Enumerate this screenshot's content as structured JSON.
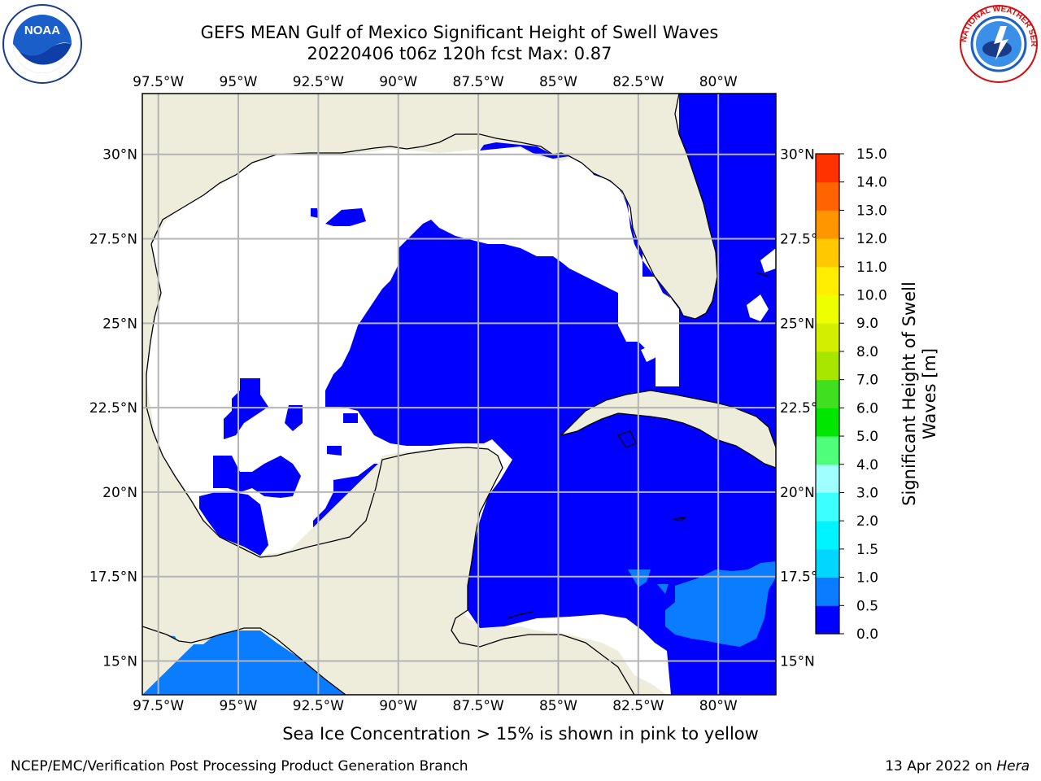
{
  "title": {
    "line1": "GEFS MEAN Gulf of Mexico Significant Height of Swell Waves",
    "line2": "20220406 t06z 120h fcst   Max: 0.87"
  },
  "map": {
    "lon_labels": [
      "97.5°W",
      "95°W",
      "92.5°W",
      "90°W",
      "87.5°W",
      "85°W",
      "82.5°W",
      "80°W"
    ],
    "lon_values": [
      -97.5,
      -95,
      -92.5,
      -90,
      -87.5,
      -85,
      -82.5,
      -80
    ],
    "lat_labels": [
      "30°N",
      "27.5°N",
      "25°N",
      "22.5°N",
      "20°N",
      "17.5°N",
      "15°N"
    ],
    "lat_values": [
      30,
      27.5,
      25,
      22.5,
      20,
      17.5,
      15
    ],
    "lon_range": [
      -98,
      -78.2
    ],
    "lat_range": [
      14,
      31.8
    ],
    "colors": {
      "land": "#eeeddc",
      "no_data": "#ffffff",
      "swell_low": "#0000ff",
      "swell_mid": "#0a7cff",
      "grid": "#b4b4b4",
      "coast": "#000000"
    }
  },
  "colorbar": {
    "label": "Significant Height of Swell Waves [m]",
    "tick_labels": [
      "0.0",
      "0.5",
      "1.0",
      "1.5",
      "2.0",
      "3.0",
      "4.0",
      "5.0",
      "6.0",
      "7.0",
      "8.0",
      "9.0",
      "10.0",
      "11.0",
      "12.0",
      "13.0",
      "14.0",
      "15.0"
    ],
    "colors": [
      "#0000ff",
      "#0a7cff",
      "#00d6ff",
      "#00f4ff",
      "#3cffff",
      "#a0ffff",
      "#50ff7c",
      "#00e600",
      "#40e020",
      "#a8e600",
      "#d4ee00",
      "#eeff00",
      "#ffee00",
      "#ffc800",
      "#ff9600",
      "#ff6400",
      "#ff3200",
      "#ff0000"
    ]
  },
  "footer": {
    "caption": "Sea Ice Concentration > 15% is shown in pink to yellow",
    "credit": "NCEP/EMC/Verification Post Processing Product Generation Branch",
    "date": "13 Apr 2022 on",
    "host": "Hera"
  },
  "logos": {
    "noaa_text": "NOAA",
    "nws_text": "NATIONAL WEATHER SERVICE"
  }
}
